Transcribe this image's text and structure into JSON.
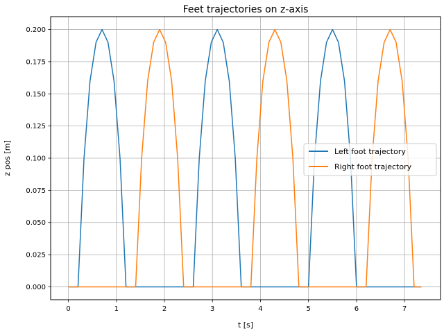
{
  "chart_data": {
    "type": "line",
    "title": "Feet trajectories on z-axis",
    "xlabel": "t [s]",
    "ylabel": "z pos [m]",
    "xlim": [
      -0.37,
      7.75
    ],
    "ylim": [
      -0.01,
      0.21
    ],
    "xticks": [
      0,
      1,
      2,
      3,
      4,
      5,
      6,
      7
    ],
    "xtick_labels": [
      "0",
      "1",
      "2",
      "3",
      "4",
      "5",
      "6",
      "7"
    ],
    "yticks": [
      0.0,
      0.025,
      0.05,
      0.075,
      0.1,
      0.125,
      0.15,
      0.175,
      0.2
    ],
    "ytick_labels": [
      "0.000",
      "0.025",
      "0.050",
      "0.075",
      "0.100",
      "0.125",
      "0.150",
      "0.175",
      "0.200"
    ],
    "grid": true,
    "legend_position": "center-right",
    "series": [
      {
        "name": "Left foot trajectory",
        "color": "#1f77b4",
        "x": [
          0,
          0.2,
          0.2,
          0.325,
          0.45,
          0.575,
          0.7,
          0.825,
          0.95,
          1.075,
          1.2,
          1.2,
          2.6,
          2.6,
          2.725,
          2.85,
          2.975,
          3.1,
          3.225,
          3.35,
          3.475,
          3.6,
          3.6,
          5.0,
          5.0,
          5.125,
          5.25,
          5.375,
          5.5,
          5.625,
          5.75,
          5.875,
          6.0,
          6.0,
          7.35
        ],
        "y": [
          0,
          0,
          0,
          0.1,
          0.16,
          0.19,
          0.2,
          0.19,
          0.16,
          0.1,
          0,
          0,
          0,
          0,
          0.1,
          0.16,
          0.19,
          0.2,
          0.19,
          0.16,
          0.1,
          0,
          0,
          0,
          0,
          0.1,
          0.16,
          0.19,
          0.2,
          0.19,
          0.16,
          0.1,
          0,
          0,
          0
        ]
      },
      {
        "name": "Right foot trajectory",
        "color": "#ff7f0e",
        "x": [
          0,
          1.4,
          1.4,
          1.525,
          1.65,
          1.775,
          1.9,
          2.025,
          2.15,
          2.275,
          2.4,
          2.4,
          3.8,
          3.8,
          3.925,
          4.05,
          4.175,
          4.3,
          4.425,
          4.55,
          4.675,
          4.8,
          4.8,
          6.2,
          6.2,
          6.325,
          6.45,
          6.575,
          6.7,
          6.825,
          6.95,
          7.075,
          7.2,
          7.2,
          7.35
        ],
        "y": [
          0,
          0,
          0,
          0.1,
          0.16,
          0.19,
          0.2,
          0.19,
          0.16,
          0.1,
          0,
          0,
          0,
          0,
          0.1,
          0.16,
          0.19,
          0.2,
          0.19,
          0.16,
          0.1,
          0,
          0,
          0,
          0,
          0.1,
          0.16,
          0.19,
          0.2,
          0.19,
          0.16,
          0.1,
          0,
          0,
          0
        ]
      }
    ]
  }
}
